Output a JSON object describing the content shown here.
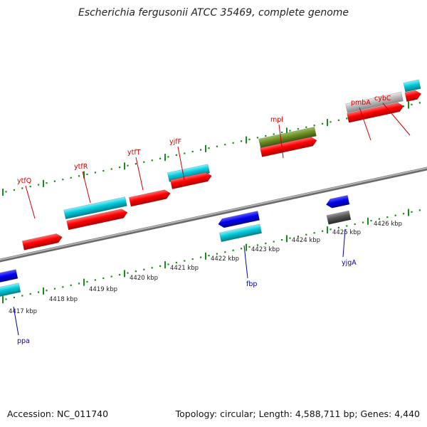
{
  "title": "Escherichia fergusonii ATCC 35469, complete genome",
  "footer": {
    "accession": "Accession: NC_011740",
    "stats": "Topology: circular; Length: 4,588,711 bp; Genes: 4,440"
  },
  "colors": {
    "forward_cds": "#ff0000",
    "reverse_cds": "#0000ee",
    "forward_gene": "#00c8d8",
    "reverse_gene": "#00c8d8",
    "mpl_gene": "#6b8e23",
    "pmbA_gene": "#bbbbbb",
    "yjgA_gene": "#555555",
    "forward_label": "#cc0000",
    "reverse_label": "#0000aa",
    "tick_marks": "#1a8a1a",
    "backbone": "#888888"
  },
  "ruler": {
    "unit": "kbp",
    "ticks": [
      "4417 kbp",
      "4418 kbp",
      "4419 kbp",
      "4420 kbp",
      "4421 kbp",
      "4422 kbp",
      "4423 kbp",
      "4424 kbp",
      "4425 kbp",
      "4426 kbp"
    ]
  },
  "features": {
    "forward": [
      {
        "label": "ytfQ"
      },
      {
        "label": "ytfR"
      },
      {
        "label": "ytfT"
      },
      {
        "label": "yjfF"
      },
      {
        "label": "mpl"
      },
      {
        "label": "pmbA"
      },
      {
        "label": "cybC"
      }
    ],
    "reverse": [
      {
        "label": "ppa"
      },
      {
        "label": "fbp"
      },
      {
        "label": "yjgA"
      }
    ]
  }
}
